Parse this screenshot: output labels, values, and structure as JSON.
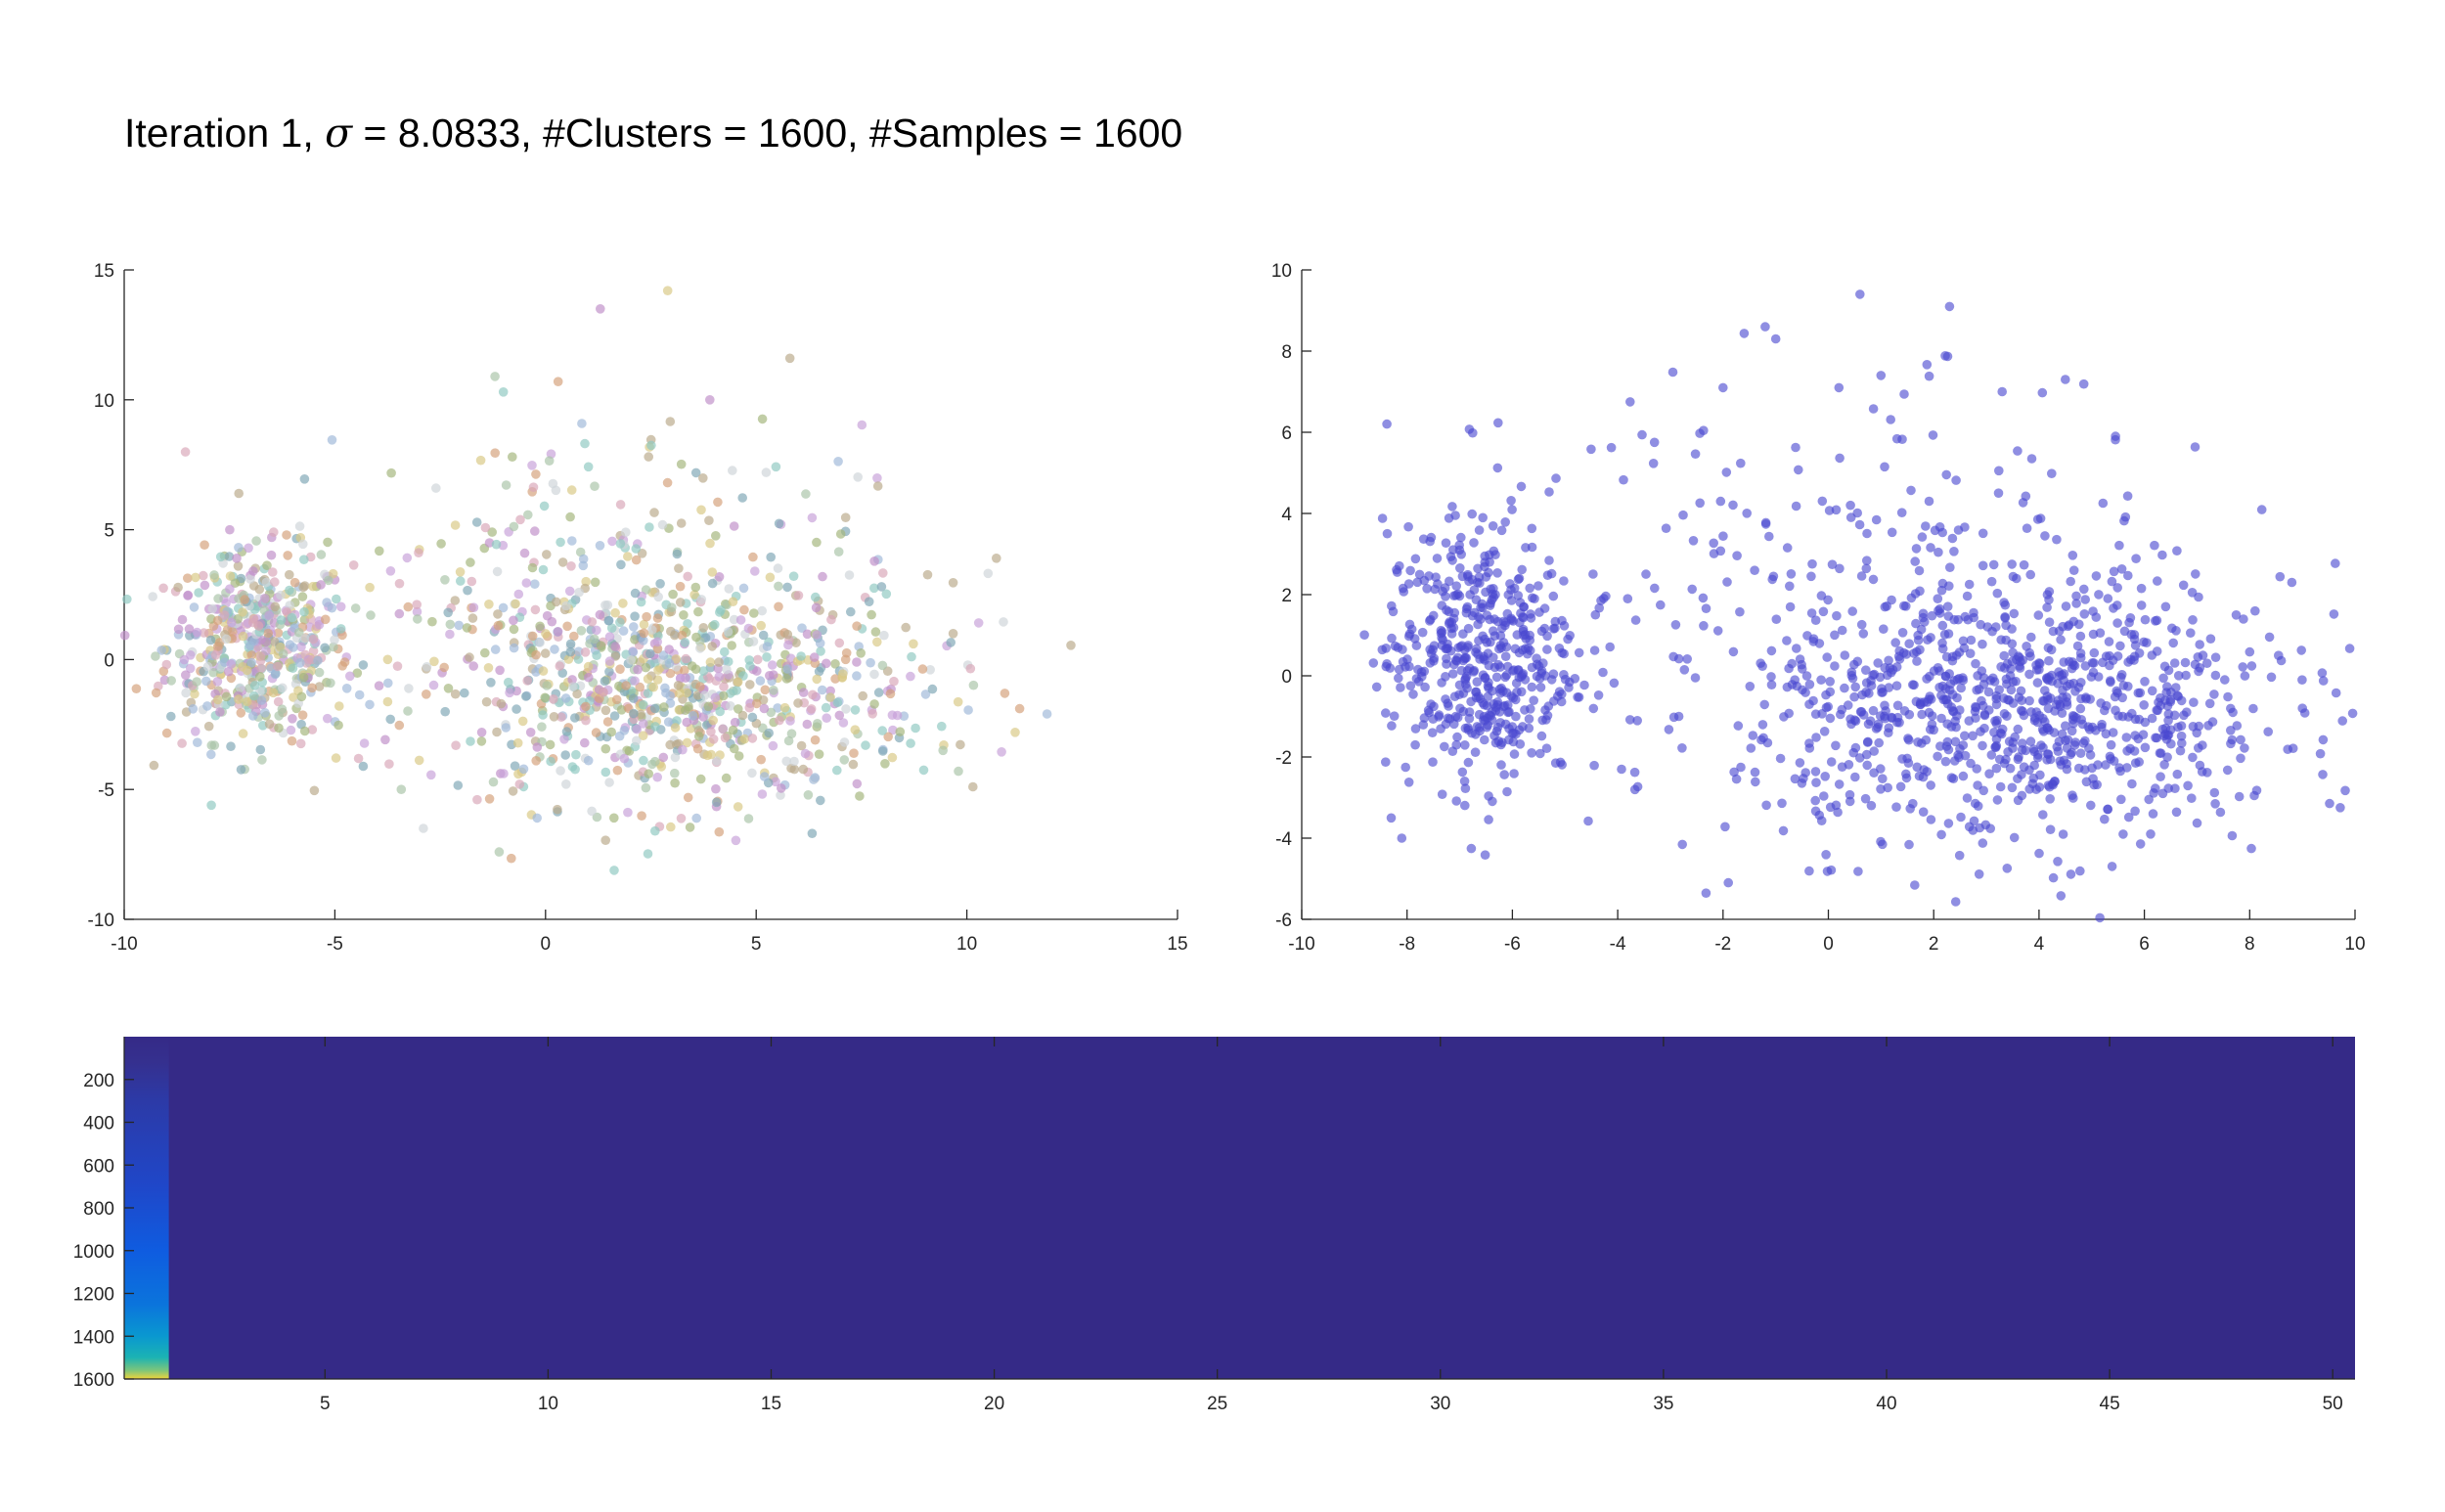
{
  "title": {
    "prefix": "Iteration 1, ",
    "symbol": "σ",
    "suffix": " = 8.0833, #Clusters = 1600, #Samples = 1600"
  },
  "chart_data": [
    {
      "type": "scatter",
      "name": "",
      "xlim": [
        -10,
        15
      ],
      "ylim": [
        -10,
        15
      ],
      "xticks": [
        -10,
        -5,
        0,
        5,
        10,
        15
      ],
      "yticks": [
        -10,
        -5,
        0,
        5,
        10,
        15
      ],
      "point_count": 1600,
      "color_mode": "per-cluster pastel colors",
      "palette": [
        "#c7a0d8",
        "#a9c4a8",
        "#d8c985",
        "#9fb8d8",
        "#d9a6b8",
        "#8fc9c1",
        "#b9a98a",
        "#cfd4d8",
        "#c08fc8",
        "#a4b57c",
        "#d4a07a",
        "#7fa7b5"
      ],
      "clusters": [
        {
          "cx": -6.8,
          "cy": 0.5,
          "sx": 1.1,
          "sy": 1.8,
          "n": 520
        },
        {
          "cx": 3.0,
          "cy": -1.2,
          "sx": 3.0,
          "sy": 2.2,
          "n": 900
        },
        {
          "cx": 0.5,
          "cy": 4.0,
          "sx": 3.5,
          "sy": 2.5,
          "n": 180
        }
      ],
      "outliers": [
        [
          2.9,
          14.2
        ],
        [
          1.3,
          13.5
        ],
        [
          5.8,
          11.6
        ],
        [
          -1.2,
          10.9
        ],
        [
          0.3,
          10.7
        ],
        [
          3.9,
          10.0
        ],
        [
          -1.0,
          10.3
        ],
        [
          -2.6,
          6.6
        ],
        [
          -2.9,
          -6.5
        ],
        [
          2.6,
          -6.6
        ],
        [
          -0.2,
          -6.1
        ],
        [
          9.8,
          -4.3
        ],
        [
          10.9,
          -1.3
        ],
        [
          10.7,
          3.9
        ]
      ]
    },
    {
      "type": "scatter",
      "name": "",
      "xlim": [
        -10,
        10
      ],
      "ylim": [
        -6,
        10
      ],
      "xticks": [
        -10,
        -8,
        -6,
        -4,
        -2,
        0,
        2,
        4,
        6,
        8,
        10
      ],
      "yticks": [
        -6,
        -4,
        -2,
        0,
        2,
        4,
        6,
        8,
        10
      ],
      "point_count": 1600,
      "color": "#4a48d0",
      "clusters": [
        {
          "cx": -6.6,
          "cy": 0.5,
          "sx": 0.9,
          "sy": 1.6,
          "n": 500
        },
        {
          "cx": 3.5,
          "cy": -0.8,
          "sx": 2.6,
          "sy": 1.7,
          "n": 950
        },
        {
          "cx": 0.0,
          "cy": 3.0,
          "sx": 3.2,
          "sy": 2.2,
          "n": 150
        }
      ],
      "outliers": [
        [
          0.6,
          9.4
        ],
        [
          2.3,
          9.1
        ],
        [
          -1.2,
          8.6
        ],
        [
          -1.0,
          8.3
        ],
        [
          4.5,
          7.3
        ],
        [
          1.0,
          7.4
        ],
        [
          0.2,
          7.1
        ],
        [
          -2.0,
          7.1
        ],
        [
          3.3,
          7.0
        ],
        [
          -1.9,
          -5.1
        ],
        [
          -8.3,
          -3.5
        ],
        [
          -8.1,
          -4.0
        ],
        [
          9.0,
          -0.8
        ],
        [
          8.8,
          2.3
        ]
      ]
    },
    {
      "type": "heatmap",
      "name": "",
      "xlim": [
        0.5,
        50.5
      ],
      "ylim": [
        0,
        1600
      ],
      "xticks": [
        5,
        10,
        15,
        20,
        25,
        30,
        35,
        40,
        45,
        50
      ],
      "yticks": [
        200,
        400,
        600,
        800,
        1000,
        1200,
        1400,
        1600
      ],
      "y_reversed": true,
      "columns": 50,
      "rows": 1600,
      "background_color": "#352a87",
      "active_column": 1,
      "column_1_gradient": [
        {
          "y": 0,
          "color": "#352a87"
        },
        {
          "y": 120,
          "color": "#35308f"
        },
        {
          "y": 300,
          "color": "#2c3aa7"
        },
        {
          "y": 700,
          "color": "#1f47c9"
        },
        {
          "y": 1000,
          "color": "#0f5ce0"
        },
        {
          "y": 1250,
          "color": "#0b74dc"
        },
        {
          "y": 1400,
          "color": "#0a98d0"
        },
        {
          "y": 1500,
          "color": "#1cb3b3"
        },
        {
          "y": 1560,
          "color": "#7ec57a"
        },
        {
          "y": 1600,
          "color": "#f0d43a"
        }
      ]
    }
  ]
}
